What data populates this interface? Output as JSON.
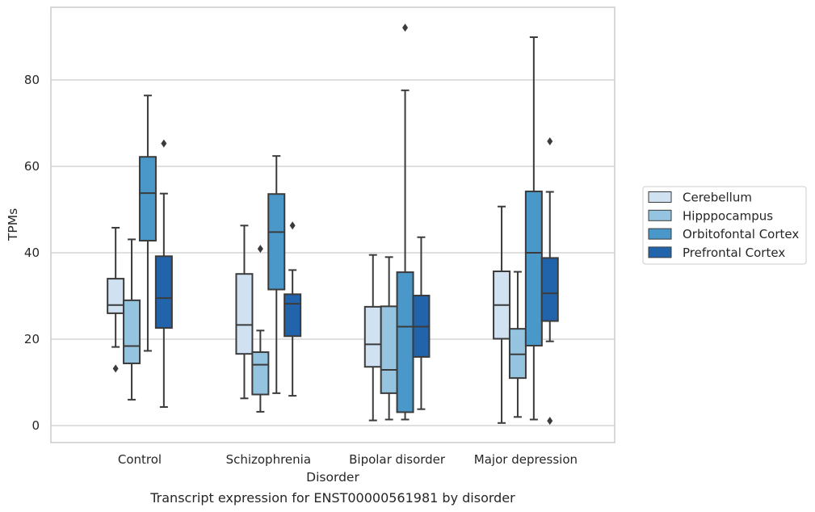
{
  "chart_data": {
    "type": "boxplot",
    "xlabel": "Disorder",
    "ylabel": "TPMs",
    "caption": "Transcript expression for ENST00000561981 by disorder",
    "ylim": [
      -4,
      97
    ],
    "yticks": [
      0,
      20,
      40,
      60,
      80
    ],
    "grid": "horizontal",
    "legend_position": "right",
    "categories": [
      "Control",
      "Schizophrenia",
      "Bipolar disorder",
      "Major depression"
    ],
    "series": [
      {
        "name": "Cerebellum",
        "color": "#d0e1f2",
        "boxes": [
          {
            "whislo": 18.2,
            "q1": 26.0,
            "med": 27.9,
            "q3": 34.0,
            "whishi": 45.8,
            "fliers": [
              13.2
            ]
          },
          {
            "whislo": 6.3,
            "q1": 16.6,
            "med": 23.3,
            "q3": 35.1,
            "whishi": 46.3,
            "fliers": []
          },
          {
            "whislo": 1.2,
            "q1": 13.6,
            "med": 18.8,
            "q3": 27.5,
            "whishi": 39.5,
            "fliers": []
          },
          {
            "whislo": 0.6,
            "q1": 20.1,
            "med": 27.9,
            "q3": 35.7,
            "whishi": 50.7,
            "fliers": []
          }
        ]
      },
      {
        "name": "Hipppocampus",
        "color": "#94c4df",
        "boxes": [
          {
            "whislo": 6.0,
            "q1": 14.4,
            "med": 18.4,
            "q3": 29.0,
            "whishi": 43.1,
            "fliers": []
          },
          {
            "whislo": 3.2,
            "q1": 7.2,
            "med": 14.1,
            "q3": 17.0,
            "whishi": 22.0,
            "fliers": [
              40.9
            ]
          },
          {
            "whislo": 1.4,
            "q1": 7.5,
            "med": 12.9,
            "q3": 27.6,
            "whishi": 39.0,
            "fliers": []
          },
          {
            "whislo": 2.0,
            "q1": 11.0,
            "med": 16.5,
            "q3": 22.4,
            "whishi": 35.6,
            "fliers": []
          }
        ]
      },
      {
        "name": "Orbitofontal Cortex",
        "color": "#4a98c9",
        "boxes": [
          {
            "whislo": 17.3,
            "q1": 42.8,
            "med": 53.8,
            "q3": 62.2,
            "whishi": 76.4,
            "fliers": []
          },
          {
            "whislo": 7.5,
            "q1": 31.5,
            "med": 44.8,
            "q3": 53.6,
            "whishi": 62.4,
            "fliers": []
          },
          {
            "whislo": 1.4,
            "q1": 3.1,
            "med": 22.9,
            "q3": 35.5,
            "whishi": 77.6,
            "fliers": [
              92.1
            ]
          },
          {
            "whislo": 1.4,
            "q1": 18.5,
            "med": 40.0,
            "q3": 54.2,
            "whishi": 89.9,
            "fliers": []
          }
        ]
      },
      {
        "name": "Prefrontal Cortex",
        "color": "#2164ab",
        "boxes": [
          {
            "whislo": 4.3,
            "q1": 22.6,
            "med": 29.5,
            "q3": 39.2,
            "whishi": 53.7,
            "fliers": [
              65.3
            ]
          },
          {
            "whislo": 6.9,
            "q1": 20.7,
            "med": 28.2,
            "q3": 30.4,
            "whishi": 36.0,
            "fliers": [
              46.3
            ]
          },
          {
            "whislo": 3.8,
            "q1": 15.9,
            "med": 22.9,
            "q3": 30.1,
            "whishi": 43.6,
            "fliers": []
          },
          {
            "whislo": 19.5,
            "q1": 24.2,
            "med": 30.6,
            "q3": 38.8,
            "whishi": 54.1,
            "fliers": [
              1.1,
              65.8
            ]
          }
        ]
      }
    ]
  }
}
